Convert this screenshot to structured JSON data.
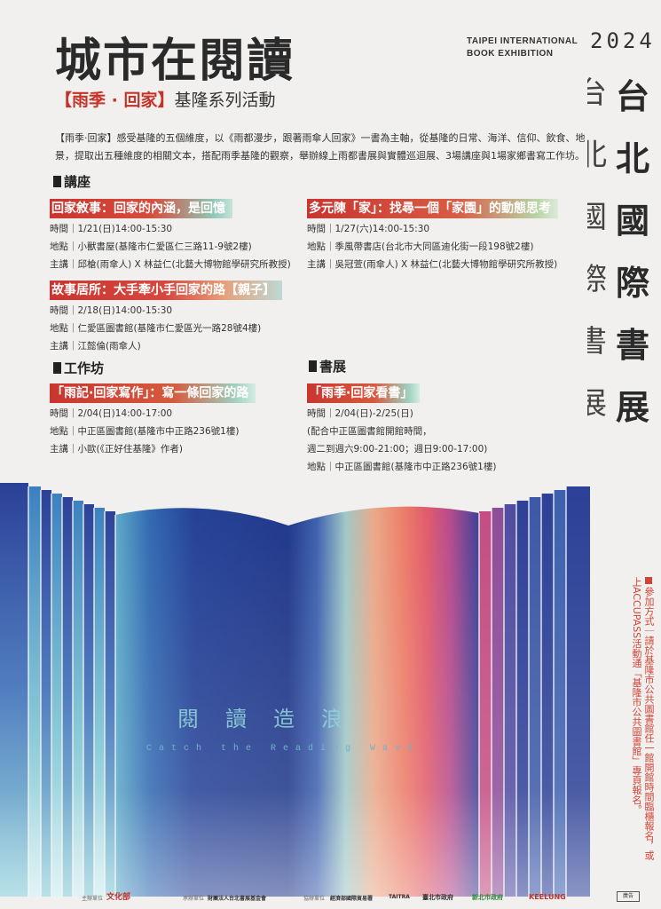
{
  "header": {
    "title": "城市在閱讀",
    "subtitle_highlight": "【雨季 · 回家】",
    "subtitle_rest": "基隆系列活動",
    "fair_en_line1": "TAIPEI INTERNATIONAL",
    "fair_en_line2": "BOOK EXHIBITION",
    "year": "2024",
    "vertical_chars": [
      "台",
      "北",
      "國",
      "際",
      "書",
      "展"
    ],
    "vertical_halves": [
      "台",
      "北",
      "國",
      "際",
      "書",
      "展"
    ]
  },
  "intro": "【雨季‧回家】感受基隆的五個維度，以《雨都漫步，跟著雨傘人回家》一書為主軸，從基隆的日常、海洋、信仰、飲食、地景，提取出五種維度的相關文本，搭配雨季基隆的觀察，舉辦線上雨都書展與實體巡迴展、3場講座與1場家鄉書寫工作坊。",
  "sections": {
    "lectures": "講座",
    "workshop": "工作坊",
    "exhibition": "書展"
  },
  "events": {
    "e1": {
      "title": "回家敘事：回家的內涵，是回憶",
      "time": "時間｜1/21(日)14:00-15:30",
      "place": "地點｜小獸書屋(基隆市仁愛區仁三路11-9號2樓)",
      "host": "主講｜邱槍(雨傘人) X 林益仁(北藝大博物館學研究所教授)"
    },
    "e2": {
      "title": "多元陳「家」：找尋一個「家園」的動態思考",
      "time": "時間｜1/27(六)14:00-15:30",
      "place": "地點｜季風帶書店(台北市大同區迪化街一段198號2樓)",
      "host": "主講｜吳冠萱(雨傘人) X 林益仁(北藝大博物館學研究所教授)"
    },
    "e3": {
      "title": "故事居所：大手牽小手回家的路【親子】",
      "time": "時間｜2/18(日)14:00-15:30",
      "place": "地點｜仁愛區圖書館(基隆市仁愛區光一路28號4樓)",
      "host": "主講｜江懿倫(雨傘人)"
    },
    "e4": {
      "title": "「雨記·回家寫作」：寫一條回家的路",
      "time": "時間｜2/04(日)14:00-17:00",
      "place": "地點｜中正區圖書館(基隆市中正路236號1樓)",
      "host": "主講｜小歐(《正好住基隆》作者)"
    },
    "e5": {
      "title": "「雨季·回家看書」",
      "time": "時間｜2/04(日)-2/25(日)",
      "note1": "(配合中正區圖書館開館時間，",
      "note2": "週二到週六9:00-21:00；週日9:00-17:00)",
      "place": "地點｜中正區圖書館(基隆市中正路236號1樓)"
    }
  },
  "art": {
    "motto": "閱讀造浪",
    "motto_en": "Catch the Reading Wave"
  },
  "side_note": "參加方式｜請於基隆市公共圖書館任一館開館時間臨櫃報名，或上ACCUPASS活動通「基隆市公共圖書館」專頁報名。",
  "footer": {
    "label_organizer": "主辦單位",
    "label_executor": "承辦單位",
    "label_cosponsor": "協辦單位",
    "logo_moc": "文化部",
    "logo_tbpf": "財團法人台北書展基金會",
    "logo_boft": "經濟部國際貿易署",
    "logo_taitra": "TAITRA",
    "logo_taipei": "臺北市政府",
    "logo_ntpc": "新北市政府",
    "logo_keelung": "KEELUNG",
    "stamp": "廣告"
  },
  "colors": {
    "accent_red": "#c9352f",
    "deep_blue": "#1f3f93",
    "teal": "#7cc7d2",
    "salmon": "#ec8a6c",
    "magenta": "#b04a86"
  }
}
